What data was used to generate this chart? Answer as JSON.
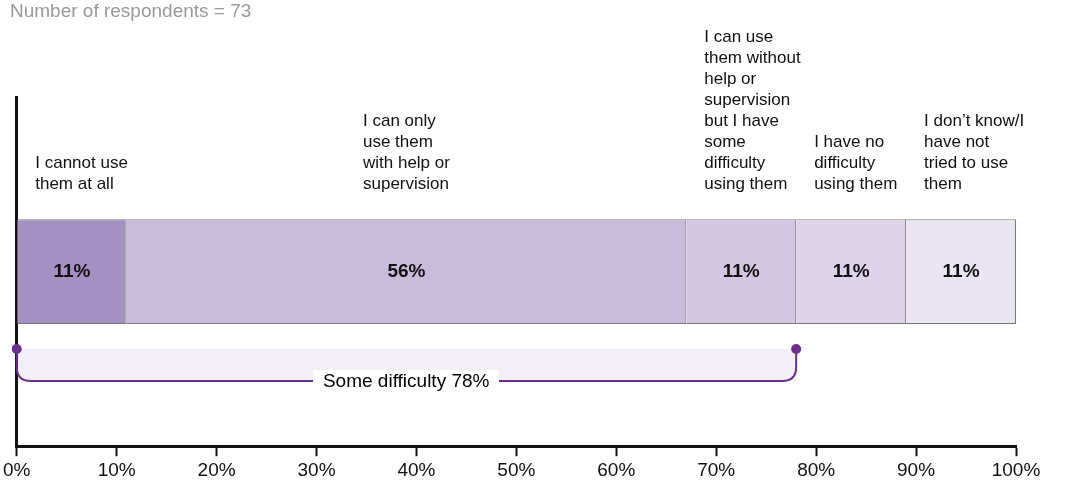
{
  "chart_data": {
    "type": "bar",
    "orientation": "horizontal",
    "stacked": true,
    "categories": [
      null
    ],
    "series": [
      {
        "name": "I cannot use them at all",
        "color": "#a590c2",
        "values": [
          11
        ],
        "value_labels": [
          "11%"
        ]
      },
      {
        "name": "I can only use them with help or supervision",
        "color": "#c9bbdc",
        "values": [
          56
        ],
        "value_labels": [
          "56%"
        ]
      },
      {
        "name": "I can use them without help or supervision but I have some difficulty using them",
        "color": "#d2c6e2",
        "values": [
          11
        ],
        "value_labels": [
          "11%"
        ]
      },
      {
        "name": "I have no difficulty using them",
        "color": "#ddd3ea",
        "values": [
          11
        ],
        "value_labels": [
          "11%"
        ]
      },
      {
        "name": "I don’t know/I have not tried to use them",
        "color": "#eae5f2",
        "values": [
          11
        ],
        "value_labels": [
          "11%"
        ]
      }
    ],
    "legend": false,
    "grid": false,
    "xlim": [
      0,
      100
    ],
    "xticks": [
      {
        "value": 0,
        "label": "0%"
      },
      {
        "value": 10,
        "label": "10%"
      },
      {
        "value": 20,
        "label": "20%"
      },
      {
        "value": 30,
        "label": "30%"
      },
      {
        "value": 40,
        "label": "40%"
      },
      {
        "value": 50,
        "label": "50%"
      },
      {
        "value": 60,
        "label": "60%"
      },
      {
        "value": 70,
        "label": "70%"
      },
      {
        "value": 80,
        "label": "80%"
      },
      {
        "value": 90,
        "label": "90%"
      },
      {
        "value": 100,
        "label": "100%"
      }
    ],
    "bands": [
      {
        "axis": "x",
        "from": 0,
        "to": 78,
        "label": "Some difficulty 78%",
        "color": "#6c2f8c"
      }
    ],
    "annotations": [
      "Number of respondents = 73"
    ]
  }
}
